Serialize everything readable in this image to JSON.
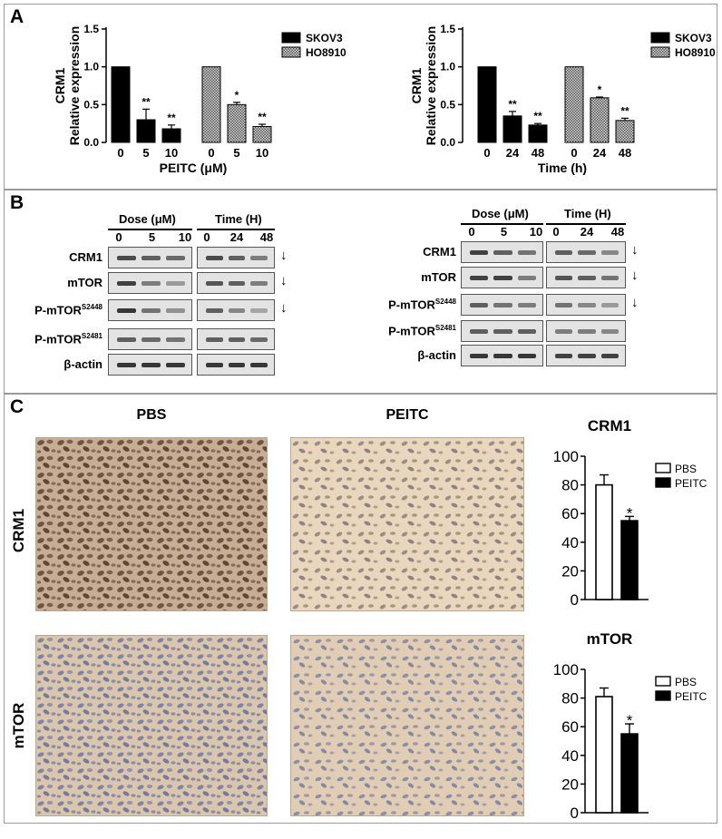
{
  "panels": {
    "a": "A",
    "b": "B",
    "c": "C"
  },
  "chart_data": [
    {
      "type": "bar",
      "ylabel": "CRM1\nRelative expression",
      "xlabel": "PEITC (μM)",
      "ylim": [
        0,
        1.5
      ],
      "yticks": [
        "0.0",
        "0.5",
        "1.0",
        "1.5"
      ],
      "groups": [
        {
          "series": "SKOV3",
          "categories": [
            "0",
            "5",
            "10"
          ],
          "values": [
            1.0,
            0.3,
            0.18
          ],
          "errors": [
            0,
            0.14,
            0.05
          ],
          "sig": [
            "",
            "**",
            "**"
          ]
        },
        {
          "series": "HO8910",
          "categories": [
            "0",
            "5",
            "10"
          ],
          "values": [
            1.0,
            0.5,
            0.21
          ],
          "errors": [
            0,
            0.03,
            0.03
          ],
          "sig": [
            "",
            "*",
            "**"
          ]
        }
      ],
      "legend": [
        "SKOV3",
        "HO8910"
      ]
    },
    {
      "type": "bar",
      "ylabel": "CRM1\nRelative expression",
      "xlabel": "Time (h)",
      "ylim": [
        0,
        1.5
      ],
      "yticks": [
        "0.0",
        "0.5",
        "1.0",
        "1.5"
      ],
      "groups": [
        {
          "series": "SKOV3",
          "categories": [
            "0",
            "24",
            "48"
          ],
          "values": [
            1.0,
            0.35,
            0.23
          ],
          "errors": [
            0,
            0.06,
            0.02
          ],
          "sig": [
            "",
            "**",
            "**"
          ]
        },
        {
          "series": "HO8910",
          "categories": [
            "0",
            "24",
            "48"
          ],
          "values": [
            1.0,
            0.59,
            0.29
          ],
          "errors": [
            0,
            0.01,
            0.03
          ],
          "sig": [
            "",
            "*",
            "**"
          ]
        }
      ],
      "legend": [
        "SKOV3",
        "HO8910"
      ]
    },
    {
      "type": "bar",
      "title": "CRM1",
      "ylim": [
        0,
        100
      ],
      "yticks": [
        "0",
        "20",
        "40",
        "60",
        "80",
        "100"
      ],
      "series": [
        {
          "name": "PBS",
          "value": 80,
          "error": 7
        },
        {
          "name": "PEITC",
          "value": 55,
          "error": 3,
          "sig": "*"
        }
      ],
      "legend": [
        "PBS",
        "PEITC"
      ]
    },
    {
      "type": "bar",
      "title": "mTOR",
      "ylim": [
        0,
        100
      ],
      "yticks": [
        "0",
        "20",
        "40",
        "60",
        "80",
        "100"
      ],
      "series": [
        {
          "name": "PBS",
          "value": 81,
          "error": 6
        },
        {
          "name": "PEITC",
          "value": 55,
          "error": 7,
          "sig": "*"
        }
      ],
      "legend": [
        "PBS",
        "PEITC"
      ]
    }
  ],
  "western": {
    "dose_header": "Dose (μM)",
    "time_header": "Time (H)",
    "dose_lanes": [
      "0",
      "5",
      "10"
    ],
    "time_lanes": [
      "0",
      "24",
      "48"
    ],
    "rows": [
      {
        "base": "CRM1",
        "sup": ""
      },
      {
        "base": "mTOR",
        "sup": ""
      },
      {
        "base": "P-mTOR",
        "sup": "S2448"
      },
      {
        "base": "P-mTOR",
        "sup": "S2481"
      },
      {
        "base": "β-actin",
        "sup": ""
      }
    ],
    "arrow": "↓",
    "left_blots": {
      "dose": [
        [
          0.8,
          0.7,
          0.65
        ],
        [
          0.85,
          0.55,
          0.4
        ],
        [
          0.9,
          0.6,
          0.45
        ],
        [
          0.7,
          0.65,
          0.6
        ],
        [
          0.9,
          0.9,
          0.9
        ]
      ],
      "time": [
        [
          0.8,
          0.7,
          0.55
        ],
        [
          0.75,
          0.7,
          0.55
        ],
        [
          0.7,
          0.5,
          0.35
        ],
        [
          0.7,
          0.7,
          0.65
        ],
        [
          0.9,
          0.9,
          0.9
        ]
      ]
    },
    "right_blots": {
      "dose": [
        [
          0.85,
          0.7,
          0.6
        ],
        [
          0.85,
          0.85,
          0.55
        ],
        [
          0.7,
          0.6,
          0.55
        ],
        [
          0.7,
          0.7,
          0.7
        ],
        [
          0.9,
          0.9,
          0.9
        ]
      ],
      "time": [
        [
          0.7,
          0.65,
          0.5
        ],
        [
          0.75,
          0.7,
          0.6
        ],
        [
          0.6,
          0.5,
          0.4
        ],
        [
          0.55,
          0.55,
          0.5
        ],
        [
          0.85,
          0.85,
          0.85
        ]
      ]
    }
  },
  "ihc": {
    "columns": [
      "PBS",
      "PEITC"
    ],
    "rows": [
      "CRM1",
      "mTOR"
    ]
  },
  "colors": {
    "black": "#000000",
    "hatch": "#7a7a7a",
    "tissue_light": "#ecdcc5",
    "tissue_brown": "#8a6a52",
    "tissue_blue": "#8b8fae"
  }
}
